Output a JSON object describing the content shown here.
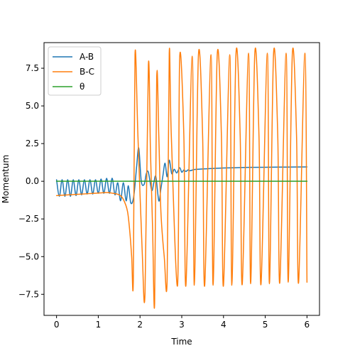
{
  "chart_data": {
    "type": "line",
    "title": "",
    "xlabel": "Time",
    "ylabel": "Momentum",
    "xlim": [
      -0.3,
      6.3
    ],
    "ylim": [
      -8.9,
      9.2
    ],
    "xticks": [
      0,
      1,
      2,
      3,
      4,
      5,
      6
    ],
    "xtick_labels": [
      "0",
      "1",
      "2",
      "3",
      "4",
      "5",
      "6"
    ],
    "yticks": [
      -7.5,
      -5.0,
      -2.5,
      0.0,
      2.5,
      5.0,
      7.5
    ],
    "ytick_labels": [
      "−7.5",
      "−5.0",
      "−2.5",
      "0.0",
      "2.5",
      "5.0",
      "7.5"
    ],
    "grid": false,
    "legend_position": "upper-left",
    "series": [
      {
        "name": "A-B",
        "color": "#1f77b4",
        "x": [
          0.0,
          0.067,
          0.133,
          0.2,
          0.267,
          0.333,
          0.4,
          0.467,
          0.533,
          0.6,
          0.667,
          0.733,
          0.8,
          0.867,
          0.933,
          1.0,
          1.067,
          1.133,
          1.2,
          1.267,
          1.333,
          1.4,
          1.467,
          1.533,
          1.6,
          1.667,
          1.72,
          1.78,
          1.85,
          1.92,
          1.97,
          2.03,
          2.1,
          2.15,
          2.2,
          2.28,
          2.33,
          2.38,
          2.45,
          2.5,
          2.55,
          2.6,
          2.65,
          2.7,
          2.76,
          2.82,
          2.88,
          2.95,
          3.0,
          3.05,
          3.1,
          3.15,
          3.2,
          3.3,
          3.4,
          3.6,
          3.8,
          4.0,
          4.3,
          4.6,
          5.0,
          5.5,
          6.0
        ],
        "y": [
          0.1,
          -1.0,
          0.1,
          -1.0,
          0.1,
          -1.0,
          0.1,
          -0.95,
          0.1,
          -0.9,
          0.1,
          -0.85,
          0.1,
          -0.85,
          0.1,
          -0.8,
          0.15,
          -0.8,
          0.2,
          -0.8,
          0.2,
          -0.9,
          -0.1,
          -1.3,
          -0.1,
          -1.3,
          -0.3,
          -1.45,
          -1.0,
          1.0,
          2.2,
          0.0,
          -0.2,
          0.5,
          0.6,
          -0.6,
          -0.1,
          0.3,
          -1.3,
          -0.5,
          0.4,
          1.2,
          0.3,
          1.4,
          0.5,
          0.8,
          0.55,
          0.9,
          0.6,
          0.75,
          0.65,
          0.75,
          0.7,
          0.78,
          0.8,
          0.83,
          0.86,
          0.88,
          0.9,
          0.92,
          0.93,
          0.94,
          0.95
        ]
      },
      {
        "name": "B-C",
        "color": "#ff7f0e",
        "x": [
          0.0,
          0.3,
          0.6,
          0.9,
          1.2,
          1.35,
          1.5,
          1.6,
          1.7,
          1.76,
          1.8,
          1.84,
          1.88,
          1.95,
          2.05,
          2.12,
          2.2,
          2.25,
          2.3,
          2.35,
          2.4,
          2.45,
          2.5,
          2.58,
          2.65,
          2.7,
          2.75,
          2.9,
          2.95,
          3.05,
          3.1,
          3.25,
          3.3,
          3.4,
          3.5,
          3.55,
          3.7,
          3.75,
          3.85,
          3.95,
          4.0,
          4.15,
          4.2,
          4.3,
          4.4,
          4.45,
          4.6,
          4.65,
          4.75,
          4.85,
          4.9,
          5.05,
          5.1,
          5.2,
          5.3,
          5.35,
          5.5,
          5.55,
          5.65,
          5.75,
          5.8,
          5.95,
          6.0
        ],
        "y": [
          -0.95,
          -0.9,
          -0.85,
          -0.8,
          -0.75,
          -0.8,
          -0.9,
          -1.2,
          -2.0,
          -3.5,
          -5.0,
          -6.5,
          8.4,
          3.0,
          -4.5,
          -7.4,
          7.7,
          2.0,
          -3.0,
          -8.1,
          6.9,
          3.0,
          -2.0,
          -5.0,
          -6.5,
          8.5,
          3.0,
          -6.9,
          8.2,
          3.0,
          -6.9,
          8.3,
          -6.9,
          8.4,
          3.0,
          -6.9,
          8.4,
          -6.9,
          8.4,
          3.0,
          -6.9,
          8.4,
          -6.9,
          8.5,
          3.0,
          -6.8,
          8.5,
          -6.8,
          8.5,
          3.0,
          -6.8,
          8.5,
          -6.8,
          8.5,
          3.0,
          -6.7,
          8.5,
          -6.7,
          8.5,
          3.0,
          -6.7,
          8.5,
          -6.7
        ]
      },
      {
        "name": "θ",
        "color": "#2ca02c",
        "x": [
          0.0,
          6.0
        ],
        "y": [
          0.0,
          0.0
        ]
      }
    ]
  }
}
